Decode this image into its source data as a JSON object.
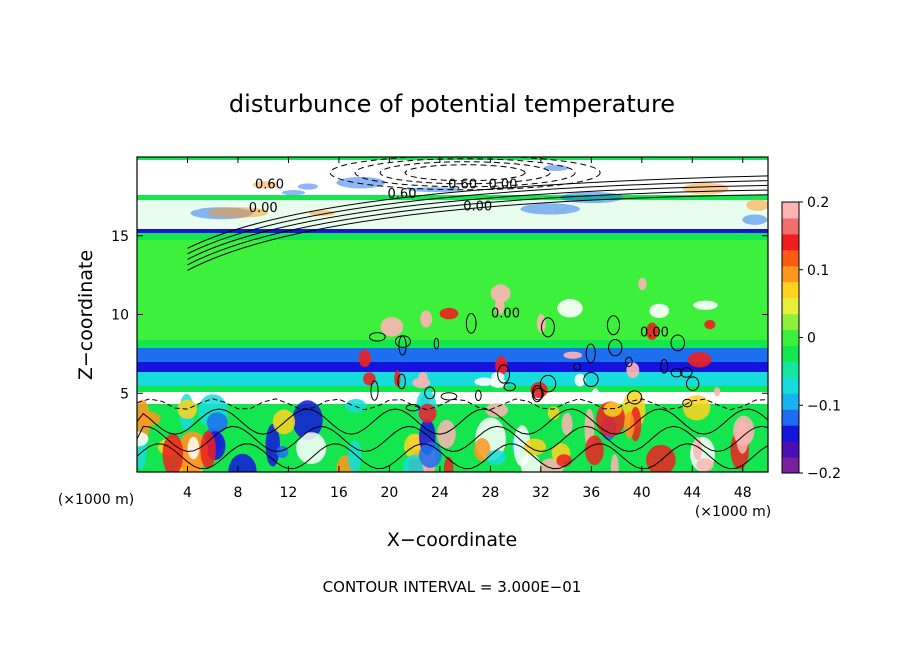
{
  "chart_data": {
    "type": "heatmap",
    "title": "disturbunce of potential temperature",
    "xlabel": "X−coordinate",
    "ylabel": "Z−coordinate",
    "x_unit_left": "(×1000 m)",
    "x_unit_right": "(×1000 m)",
    "footer": "CONTOUR INTERVAL = 3.000E−01",
    "xlim": [
      0,
      50
    ],
    "ylim": [
      0,
      20
    ],
    "x_ticks": [
      4,
      8,
      12,
      16,
      20,
      24,
      28,
      32,
      36,
      40,
      44,
      48
    ],
    "x_tick_labels": [
      "4",
      "8",
      "12",
      "16",
      "20",
      "24",
      "28",
      "32",
      "36",
      "40",
      "44",
      "48"
    ],
    "y_ticks": [
      5,
      10,
      15
    ],
    "y_tick_labels": [
      "5",
      "10",
      "15"
    ],
    "colorbar": {
      "range": [
        -0.2,
        0.2
      ],
      "ticks": [
        0.2,
        0.1,
        0,
        -0.1,
        -0.2
      ],
      "tick_labels": [
        "0.2",
        "0.1",
        "0",
        "−0.1",
        "−0.2"
      ],
      "colors": [
        "#7a1fa0",
        "#4b0fb4",
        "#1414dc",
        "#1e6ef0",
        "#18b4f0",
        "#16dcdc",
        "#14e6a0",
        "#14e650",
        "#3cf03c",
        "#8cf03c",
        "#e6f03c",
        "#ffd21e",
        "#ff961e",
        "#ff5a14",
        "#f01e1e",
        "#f06e6e",
        "#ffb4b4"
      ]
    },
    "contour_labels": [
      {
        "text": "0.60",
        "x": 10.5,
        "z": 18.0
      },
      {
        "text": "0.60",
        "x": 25.8,
        "z": 18.0
      },
      {
        "text": "0.00",
        "x": 29.0,
        "z": 18.0
      },
      {
        "text": "0.60",
        "x": 21.0,
        "z": 17.4
      },
      {
        "text": "0.00",
        "x": 10.0,
        "z": 16.5
      },
      {
        "text": "0.00",
        "x": 27.0,
        "z": 16.6
      },
      {
        "text": "0.00",
        "x": 29.2,
        "z": 9.8
      },
      {
        "text": "0.00",
        "x": 41.0,
        "z": 8.6
      }
    ]
  }
}
